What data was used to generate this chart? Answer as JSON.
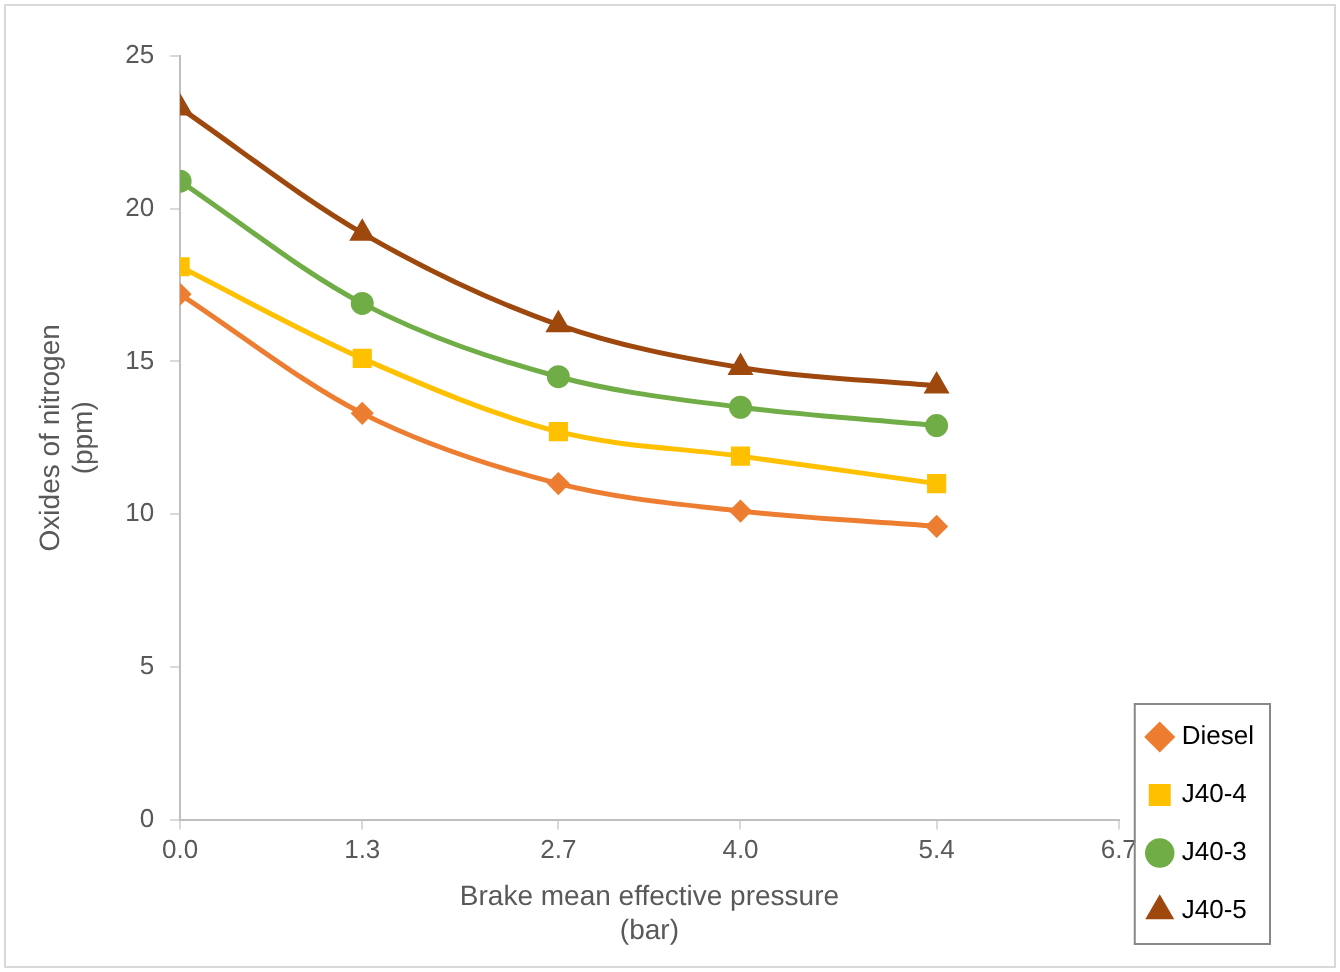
{
  "chart_data": {
    "type": "line",
    "xlabel": "Brake mean effective pressure\n(bar)",
    "ylabel": "Oxides of nitrogen\n(ppm)",
    "x": [
      0,
      1.3,
      2.7,
      4.0,
      5.4
    ],
    "xlim": [
      0,
      6.7
    ],
    "xticks": [
      {
        "value": 0,
        "label": "0.0"
      },
      1.3,
      2.7,
      {
        "value": 4,
        "label": "4.0"
      },
      5.4,
      6.7
    ],
    "ylim": [
      0,
      25
    ],
    "yticks": [
      0,
      5,
      10,
      15,
      20,
      25
    ],
    "grid": false,
    "legend": "bottom right",
    "series": [
      {
        "name": "Diesel",
        "color": "#ed7d31",
        "marker": "diamond",
        "values": [
          17.2,
          13.3,
          11.0,
          10.1,
          9.6
        ]
      },
      {
        "name": "J40-4",
        "color": "#ffc000",
        "marker": "square",
        "values": [
          18.1,
          15.1,
          12.7,
          11.9,
          11.0
        ]
      },
      {
        "name": "J40-3",
        "color": "#70ad47",
        "marker": "circle",
        "values": [
          20.9,
          16.9,
          14.5,
          13.5,
          12.9
        ]
      },
      {
        "name": "J40-5",
        "color": "#9e480e",
        "marker": "triangle",
        "values": [
          23.3,
          19.2,
          16.2,
          14.8,
          14.2
        ]
      }
    ]
  }
}
